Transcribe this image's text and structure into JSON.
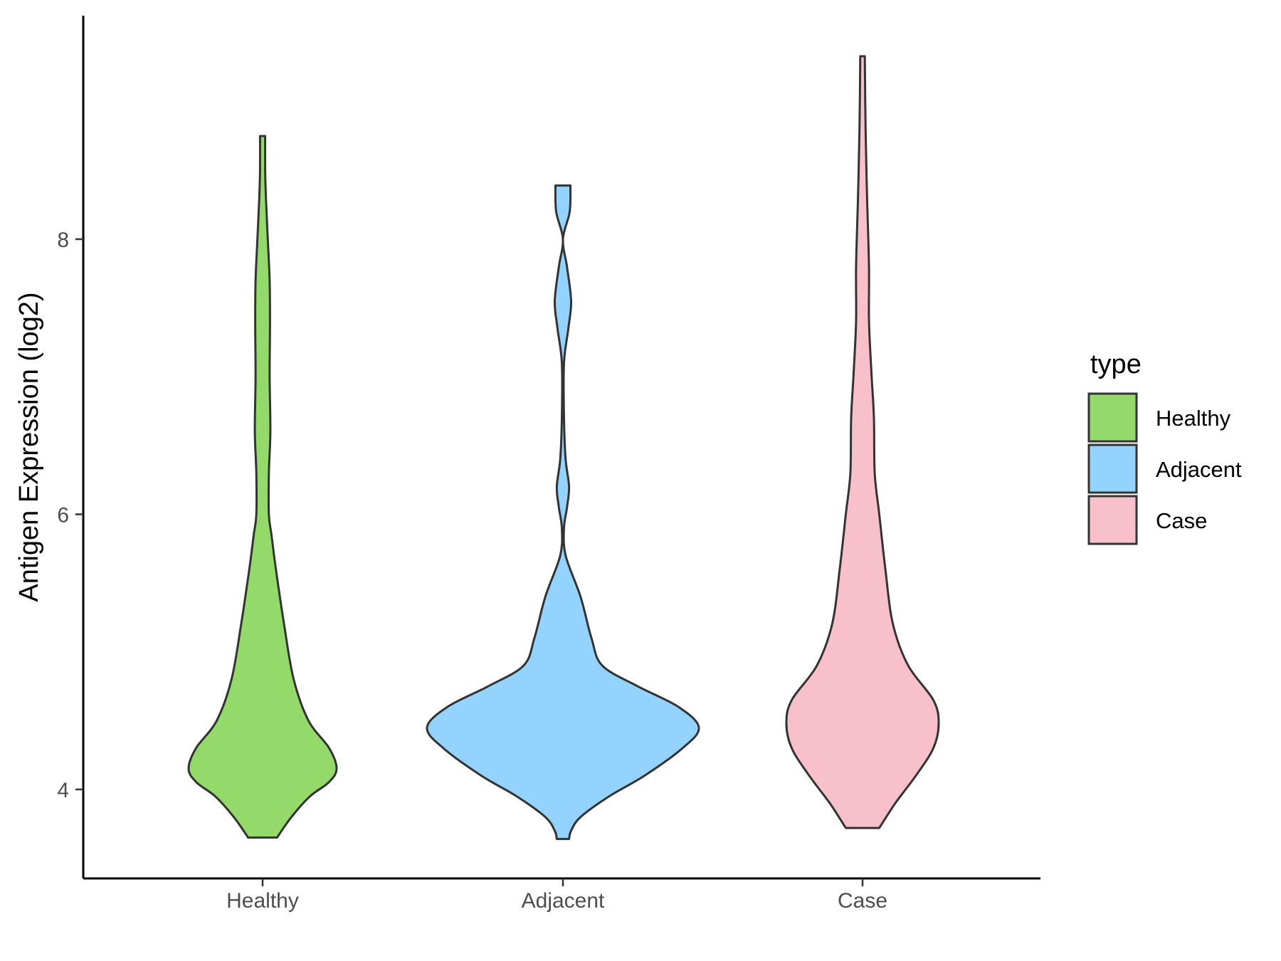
{
  "chart_data": {
    "type": "violin",
    "ylabel": "Antigen Expression (log2)",
    "xlabel": "",
    "categories": [
      "Healthy",
      "Adjacent",
      "Case"
    ],
    "yticks": [
      4,
      6,
      8
    ],
    "ylim": [
      3.5,
      9.8
    ],
    "grid": false,
    "legend": {
      "title": "type",
      "placement": "right",
      "entries": [
        {
          "label": "Healthy",
          "color": "#93DA6A"
        },
        {
          "label": "Adjacent",
          "color": "#93D3FE"
        },
        {
          "label": "Case",
          "color": "#F8C0CB"
        }
      ]
    },
    "series": [
      {
        "category": "Healthy",
        "color": "#93DA6A",
        "min": 3.65,
        "max": 8.75,
        "density": [
          [
            3.65,
            0.195
          ],
          [
            3.8,
            0.39
          ],
          [
            3.95,
            0.64
          ],
          [
            4.05,
            0.89
          ],
          [
            4.15,
            1.0
          ],
          [
            4.3,
            0.9
          ],
          [
            4.5,
            0.62
          ],
          [
            4.8,
            0.42
          ],
          [
            5.2,
            0.29
          ],
          [
            5.6,
            0.18
          ],
          [
            5.85,
            0.12
          ],
          [
            6.0,
            0.085
          ],
          [
            6.3,
            0.085
          ],
          [
            6.6,
            0.105
          ],
          [
            7.0,
            0.095
          ],
          [
            7.4,
            0.1
          ],
          [
            7.7,
            0.095
          ],
          [
            8.0,
            0.07
          ],
          [
            8.3,
            0.045
          ],
          [
            8.5,
            0.035
          ],
          [
            8.75,
            0.035
          ]
        ]
      },
      {
        "category": "Adjacent",
        "color": "#93D3FE",
        "min": 3.64,
        "max": 8.39,
        "density": [
          [
            3.64,
            0.045
          ],
          [
            3.7,
            0.06
          ],
          [
            3.8,
            0.13
          ],
          [
            3.95,
            0.34
          ],
          [
            4.1,
            0.6
          ],
          [
            4.3,
            0.88
          ],
          [
            4.45,
            1.0
          ],
          [
            4.6,
            0.85
          ],
          [
            4.75,
            0.55
          ],
          [
            4.9,
            0.29
          ],
          [
            5.1,
            0.21
          ],
          [
            5.4,
            0.13
          ],
          [
            5.7,
            0.02
          ],
          [
            5.9,
            0.008
          ],
          [
            6.05,
            0.03
          ],
          [
            6.2,
            0.045
          ],
          [
            6.4,
            0.02
          ],
          [
            6.7,
            0.008
          ],
          [
            7.1,
            0.008
          ],
          [
            7.35,
            0.04
          ],
          [
            7.55,
            0.06
          ],
          [
            7.8,
            0.03
          ],
          [
            8.0,
            0.0
          ],
          [
            8.2,
            0.05
          ],
          [
            8.39,
            0.055
          ]
        ]
      },
      {
        "category": "Case",
        "color": "#F8C0CB",
        "min": 3.72,
        "max": 9.33,
        "density": [
          [
            3.72,
            0.22
          ],
          [
            3.9,
            0.43
          ],
          [
            4.1,
            0.7
          ],
          [
            4.3,
            0.93
          ],
          [
            4.48,
            1.0
          ],
          [
            4.65,
            0.93
          ],
          [
            4.9,
            0.6
          ],
          [
            5.2,
            0.4
          ],
          [
            5.6,
            0.3
          ],
          [
            6.0,
            0.22
          ],
          [
            6.3,
            0.16
          ],
          [
            6.7,
            0.15
          ],
          [
            7.0,
            0.12
          ],
          [
            7.4,
            0.085
          ],
          [
            7.8,
            0.085
          ],
          [
            8.3,
            0.06
          ],
          [
            8.8,
            0.04
          ],
          [
            9.33,
            0.03
          ]
        ]
      }
    ]
  }
}
